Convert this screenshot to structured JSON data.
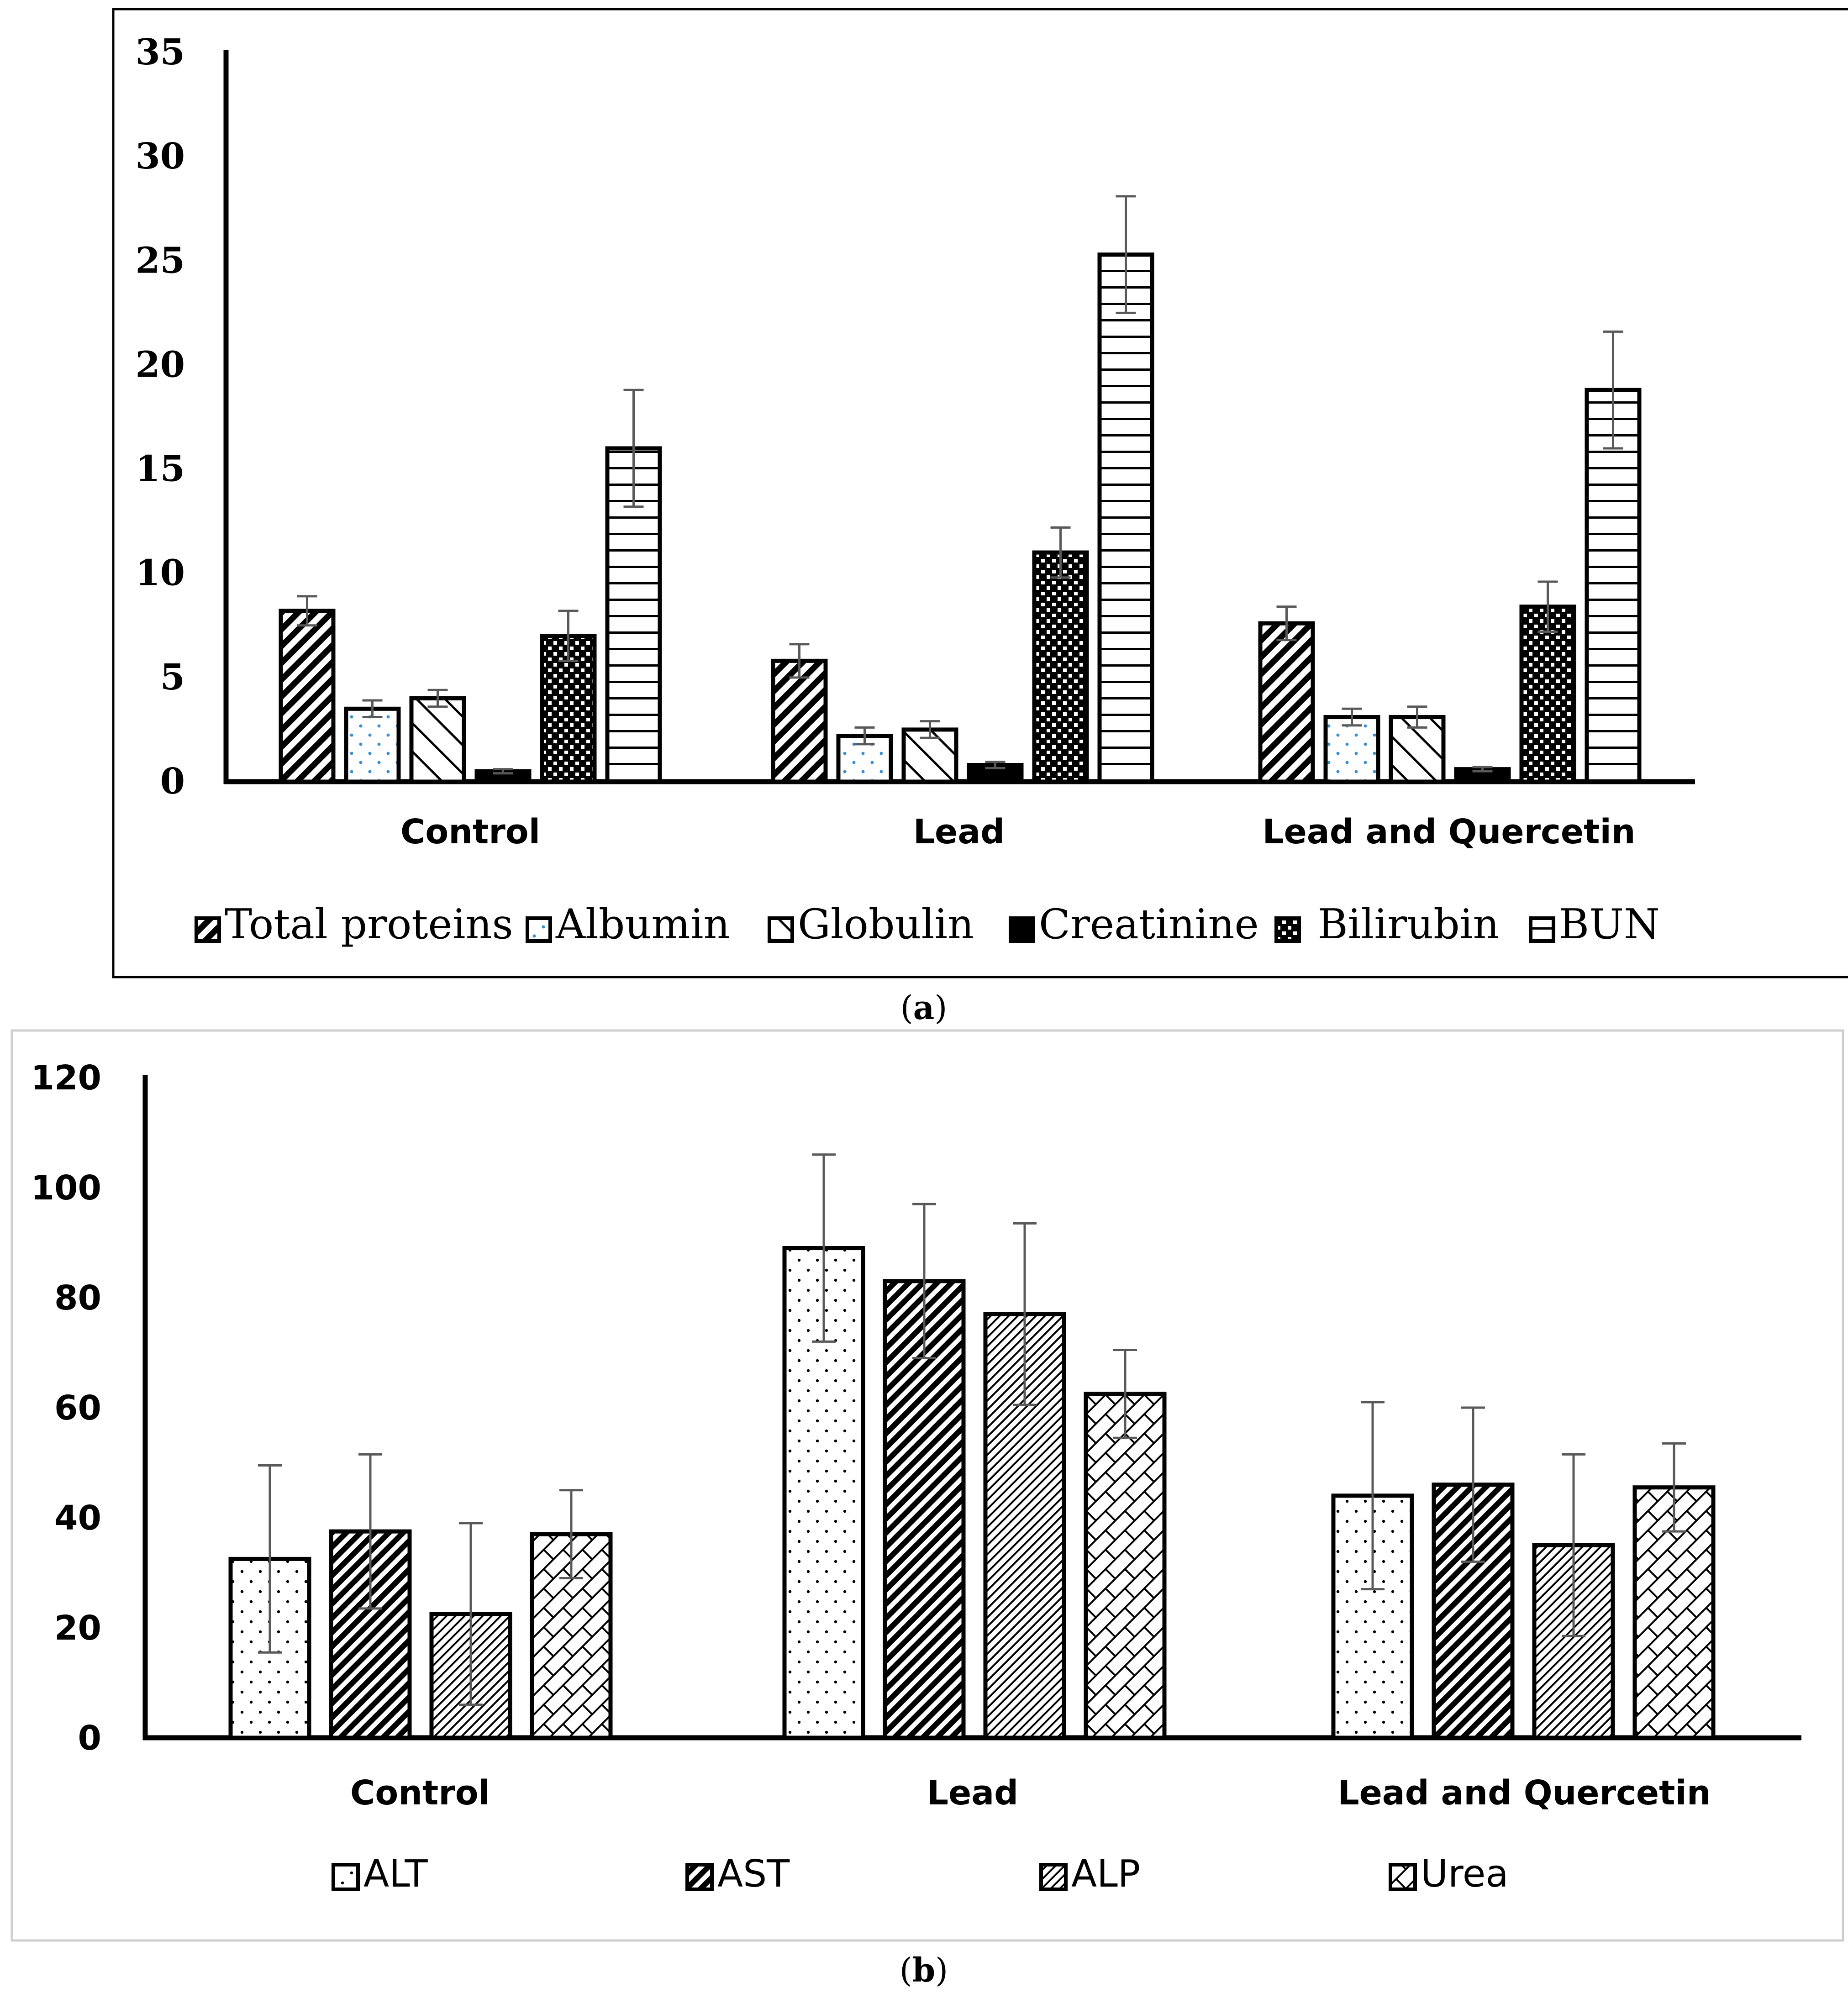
{
  "chart_data": [
    {
      "id": "a",
      "type": "bar",
      "caption_letter": "a",
      "categories": [
        "Control",
        "Lead",
        "Lead and Quercetin"
      ],
      "ylim": [
        0,
        35
      ],
      "yticks": [
        "0",
        "5",
        "10",
        "15",
        "20",
        "25",
        "30",
        "35"
      ],
      "series": [
        {
          "name": "Total proteins",
          "pattern": "diag-bold",
          "values": [
            8.2,
            5.8,
            7.6
          ],
          "errors": [
            0.7,
            0.8,
            0.8
          ]
        },
        {
          "name": "Albumin",
          "pattern": "dots-blue",
          "values": [
            3.5,
            2.2,
            3.1
          ],
          "errors": [
            0.4,
            0.4,
            0.4
          ]
        },
        {
          "name": "Globulin",
          "pattern": "diag-wide",
          "values": [
            4.0,
            2.5,
            3.1
          ],
          "errors": [
            0.4,
            0.4,
            0.5
          ]
        },
        {
          "name": "Creatinine",
          "pattern": "solid",
          "values": [
            0.5,
            0.8,
            0.6
          ],
          "errors": [
            0.1,
            0.15,
            0.1
          ]
        },
        {
          "name": " Bilirubin",
          "pattern": "checker",
          "values": [
            7.0,
            11.0,
            8.4
          ],
          "errors": [
            1.2,
            1.2,
            1.2
          ]
        },
        {
          "name": "BUN",
          "pattern": "hlines",
          "values": [
            16.0,
            25.3,
            18.8
          ],
          "errors": [
            2.8,
            2.8,
            2.8
          ]
        }
      ]
    },
    {
      "id": "b",
      "type": "bar",
      "caption_letter": "b",
      "categories": [
        "Control",
        "Lead",
        "Lead and Quercetin"
      ],
      "ylim": [
        0,
        120
      ],
      "yticks": [
        "0",
        "20",
        "40",
        "60",
        "80",
        "100",
        "120"
      ],
      "series": [
        {
          "name": "ALT",
          "pattern": "dots",
          "values": [
            32.5,
            89.0,
            44.0
          ],
          "errors": [
            17.0,
            17.0,
            17.0
          ]
        },
        {
          "name": "AST",
          "pattern": "diag-dense",
          "values": [
            37.5,
            83.0,
            46.0
          ],
          "errors": [
            14.0,
            14.0,
            14.0
          ]
        },
        {
          "name": "ALP",
          "pattern": "diag-fine",
          "values": [
            22.5,
            77.0,
            35.0
          ],
          "errors": [
            16.5,
            16.5,
            16.5
          ]
        },
        {
          "name": "Urea",
          "pattern": "brick",
          "values": [
            37.0,
            62.5,
            45.5
          ],
          "errors": [
            8.0,
            8.0,
            8.0
          ]
        }
      ]
    }
  ]
}
